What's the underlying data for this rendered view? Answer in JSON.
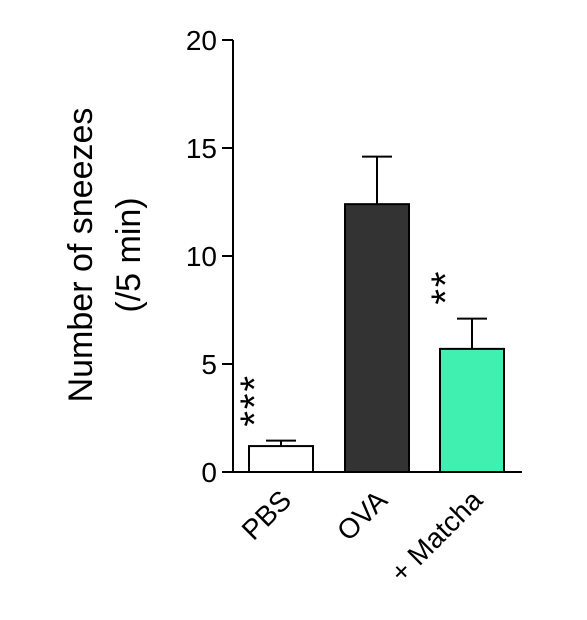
{
  "chart_data": {
    "type": "bar",
    "ylabel": [
      "Number of sneezes",
      "(/5 min)"
    ],
    "categories": [
      "PBS",
      "OVA",
      "+ Matcha"
    ],
    "values": [
      1.2,
      12.4,
      5.7
    ],
    "errors": [
      0.25,
      2.2,
      1.4
    ],
    "colors": [
      "#ffffff",
      "#333333",
      "#40f0b0"
    ],
    "significance": [
      "***",
      null,
      "**"
    ],
    "ylim": [
      0,
      20
    ],
    "yticks": [
      0,
      5,
      10,
      15,
      20
    ]
  }
}
